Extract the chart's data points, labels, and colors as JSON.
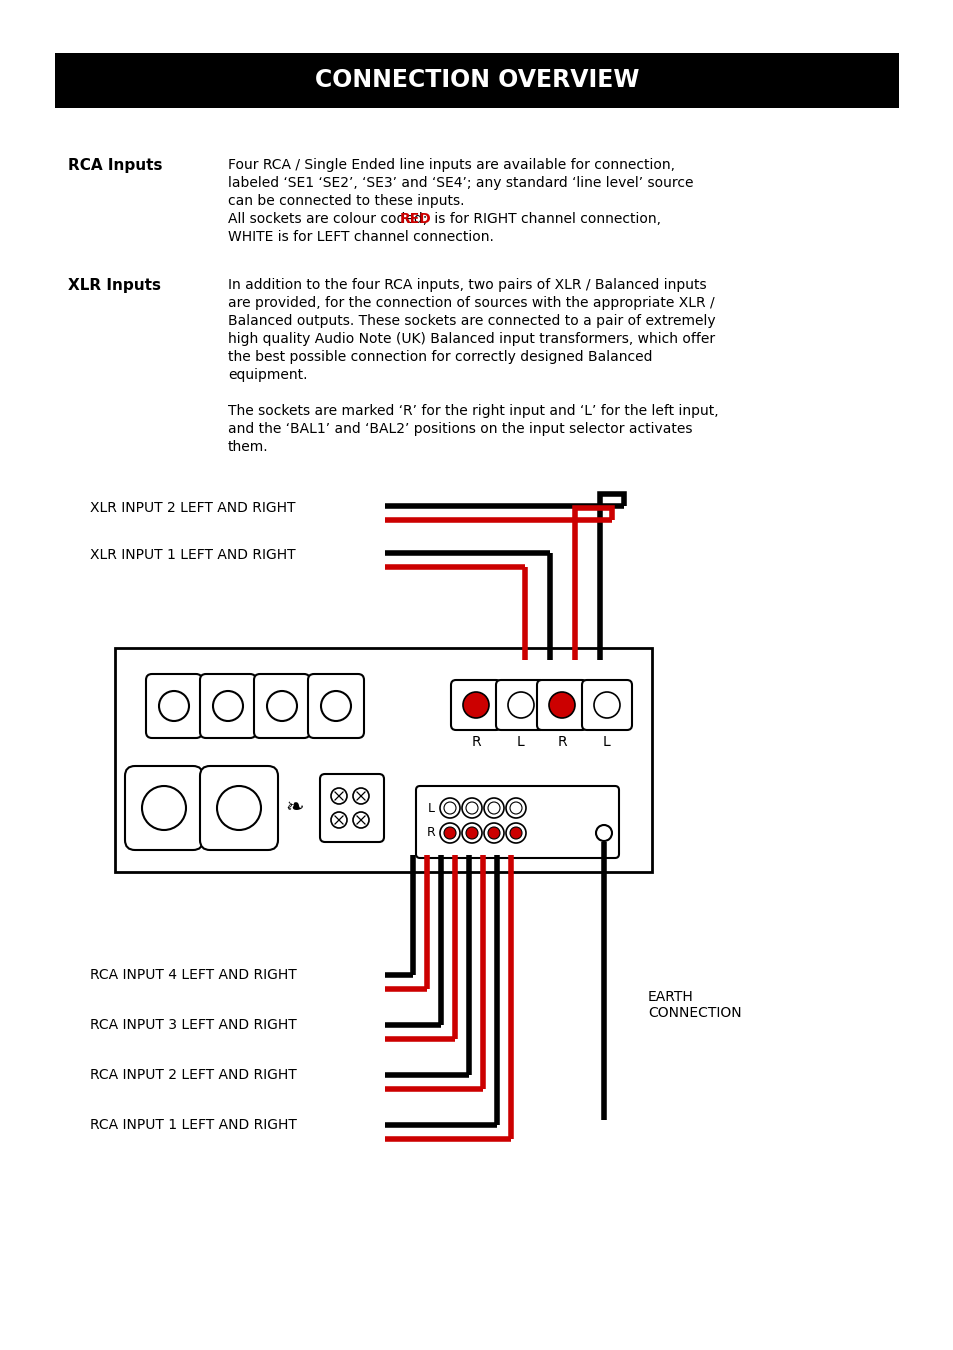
{
  "title": "CONNECTION OVERVIEW",
  "title_bg": "#000000",
  "title_fg": "#ffffff",
  "rca_label": "RCA Inputs",
  "rca_text_line1": "Four RCA / Single Ended line inputs are available for connection,",
  "rca_text_line2": "labeled ‘SE1 ‘SE2’, ‘SE3’ and ‘SE4’; any standard ‘line level’ source",
  "rca_text_line3": "can be connected to these inputs.",
  "rca_text_line4a": "All sockets are colour coded; ",
  "rca_text_line4b": "RED",
  "rca_text_line4c": " is for RIGHT channel connection,",
  "rca_text_line5": "WHITE is for LEFT channel connection.",
  "xlr_label": "XLR Inputs",
  "xlr_text_line1": "In addition to the four RCA inputs, two pairs of XLR / Balanced inputs",
  "xlr_text_line2": "are provided, for the connection of sources with the appropriate XLR /",
  "xlr_text_line3": "Balanced outputs. These sockets are connected to a pair of extremely",
  "xlr_text_line4": "high quality Audio Note (UK) Balanced input transformers, which offer",
  "xlr_text_line5": "the best possible connection for correctly designed Balanced",
  "xlr_text_line6": "equipment.",
  "xlr_text_line7": "The sockets are marked ‘R’ for the right input and ‘L’ for the left input,",
  "xlr_text_line8": "and the ‘BAL1’ and ‘BAL2’ positions on the input selector activates",
  "xlr_text_line9": "them.",
  "diagram_labels": {
    "xlr2": "XLR INPUT 2 LEFT AND RIGHT",
    "xlr1": "XLR INPUT 1 LEFT AND RIGHT",
    "rca4": "RCA INPUT 4 LEFT AND RIGHT",
    "rca3": "RCA INPUT 3 LEFT AND RIGHT",
    "rca2": "RCA INPUT 2 LEFT AND RIGHT",
    "rca1": "RCA INPUT 1 LEFT AND RIGHT",
    "earth": "EARTH\nCONNECTION"
  },
  "bg_color": "#ffffff",
  "black": "#000000",
  "red": "#cc0000",
  "gray": "#888888"
}
